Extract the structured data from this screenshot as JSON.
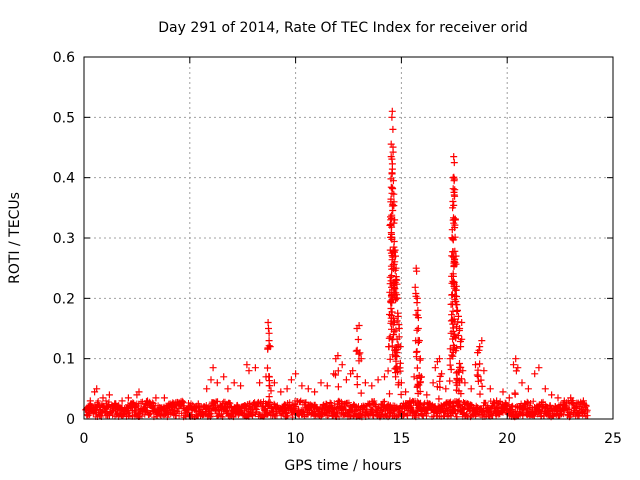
{
  "chart_data": {
    "type": "scatter",
    "title": "Day 291 of 2014, Rate Of TEC Index for receiver orid",
    "xlabel": "GPS time / hours",
    "ylabel": "ROTI / TECUs",
    "xlim": [
      0,
      25
    ],
    "ylim": [
      0,
      0.6
    ],
    "xticks": [
      0,
      5,
      10,
      15,
      20,
      25
    ],
    "yticks": [
      0,
      0.1,
      0.2,
      0.3,
      0.4,
      0.5,
      0.6
    ],
    "xtick_labels": [
      "0",
      "5",
      "10",
      "15",
      "20",
      "25"
    ],
    "ytick_labels": [
      "0",
      "0.1",
      "0.2",
      "0.3",
      "0.4",
      "0.5",
      "0.6"
    ],
    "grid": true,
    "marker": "+",
    "color": "#ff0000",
    "series": [
      {
        "name": "ROTI",
        "points": [
          [
            0.1,
            0.015
          ],
          [
            0.3,
            0.03
          ],
          [
            0.5,
            0.045
          ],
          [
            0.6,
            0.05
          ],
          [
            0.9,
            0.035
          ],
          [
            1.2,
            0.04
          ],
          [
            1.5,
            0.025
          ],
          [
            1.8,
            0.03
          ],
          [
            2.1,
            0.035
          ],
          [
            2.5,
            0.04
          ],
          [
            2.6,
            0.045
          ],
          [
            3.0,
            0.03
          ],
          [
            3.4,
            0.035
          ],
          [
            3.8,
            0.035
          ],
          [
            4.2,
            0.02
          ],
          [
            4.6,
            0.025
          ],
          [
            5.0,
            0.02
          ],
          [
            5.4,
            0.025
          ],
          [
            5.8,
            0.05
          ],
          [
            6.0,
            0.065
          ],
          [
            6.1,
            0.085
          ],
          [
            6.3,
            0.06
          ],
          [
            6.6,
            0.07
          ],
          [
            6.8,
            0.05
          ],
          [
            7.1,
            0.06
          ],
          [
            7.4,
            0.055
          ],
          [
            7.7,
            0.09
          ],
          [
            7.8,
            0.08
          ],
          [
            8.1,
            0.085
          ],
          [
            8.3,
            0.06
          ],
          [
            8.6,
            0.07
          ],
          [
            8.7,
            0.16
          ],
          [
            8.72,
            0.15
          ],
          [
            8.75,
            0.13
          ],
          [
            8.8,
            0.12
          ],
          [
            9.0,
            0.06
          ],
          [
            9.3,
            0.045
          ],
          [
            9.6,
            0.05
          ],
          [
            9.8,
            0.065
          ],
          [
            10.0,
            0.075
          ],
          [
            10.3,
            0.055
          ],
          [
            10.6,
            0.05
          ],
          [
            10.9,
            0.045
          ],
          [
            11.2,
            0.06
          ],
          [
            11.5,
            0.055
          ],
          [
            11.8,
            0.075
          ],
          [
            11.9,
            0.1
          ],
          [
            12.0,
            0.105
          ],
          [
            12.2,
            0.09
          ],
          [
            12.4,
            0.065
          ],
          [
            12.6,
            0.075
          ],
          [
            12.7,
            0.08
          ],
          [
            12.9,
            0.15
          ],
          [
            13.0,
            0.155
          ],
          [
            13.1,
            0.1
          ],
          [
            13.3,
            0.06
          ],
          [
            13.6,
            0.055
          ],
          [
            13.9,
            0.065
          ],
          [
            14.2,
            0.07
          ],
          [
            14.4,
            0.12
          ],
          [
            14.45,
            0.21
          ],
          [
            14.5,
            0.36
          ],
          [
            14.52,
            0.435
          ],
          [
            14.55,
            0.5
          ],
          [
            14.57,
            0.51
          ],
          [
            14.6,
            0.48
          ],
          [
            14.62,
            0.395
          ],
          [
            14.65,
            0.36
          ],
          [
            14.68,
            0.33
          ],
          [
            14.7,
            0.28
          ],
          [
            14.72,
            0.27
          ],
          [
            14.75,
            0.25
          ],
          [
            14.78,
            0.23
          ],
          [
            14.8,
            0.2
          ],
          [
            14.85,
            0.17
          ],
          [
            14.9,
            0.15
          ],
          [
            14.95,
            0.12
          ],
          [
            15.0,
            0.06
          ],
          [
            15.2,
            0.045
          ],
          [
            15.4,
            0.03
          ],
          [
            15.6,
            0.07
          ],
          [
            15.7,
            0.25
          ],
          [
            15.72,
            0.245
          ],
          [
            15.75,
            0.2
          ],
          [
            15.78,
            0.18
          ],
          [
            15.8,
            0.15
          ],
          [
            15.85,
            0.13
          ],
          [
            15.9,
            0.1
          ],
          [
            15.95,
            0.07
          ],
          [
            16.2,
            0.04
          ],
          [
            16.5,
            0.06
          ],
          [
            16.6,
            0.085
          ],
          [
            16.7,
            0.095
          ],
          [
            16.8,
            0.1
          ],
          [
            16.9,
            0.075
          ],
          [
            17.1,
            0.05
          ],
          [
            17.3,
            0.1
          ],
          [
            17.35,
            0.19
          ],
          [
            17.4,
            0.3
          ],
          [
            17.42,
            0.35
          ],
          [
            17.45,
            0.4
          ],
          [
            17.47,
            0.435
          ],
          [
            17.5,
            0.425
          ],
          [
            17.52,
            0.38
          ],
          [
            17.55,
            0.33
          ],
          [
            17.58,
            0.27
          ],
          [
            17.6,
            0.22
          ],
          [
            17.65,
            0.18
          ],
          [
            17.7,
            0.17
          ],
          [
            17.75,
            0.15
          ],
          [
            17.8,
            0.12
          ],
          [
            17.85,
            0.16
          ],
          [
            17.9,
            0.08
          ],
          [
            18.0,
            0.06
          ],
          [
            18.3,
            0.05
          ],
          [
            18.5,
            0.09
          ],
          [
            18.6,
            0.11
          ],
          [
            18.7,
            0.12
          ],
          [
            18.8,
            0.13
          ],
          [
            18.9,
            0.08
          ],
          [
            19.2,
            0.05
          ],
          [
            19.5,
            0.03
          ],
          [
            19.8,
            0.045
          ],
          [
            20.1,
            0.035
          ],
          [
            20.3,
            0.09
          ],
          [
            20.4,
            0.1
          ],
          [
            20.5,
            0.085
          ],
          [
            20.7,
            0.06
          ],
          [
            21.0,
            0.05
          ],
          [
            21.3,
            0.075
          ],
          [
            21.5,
            0.085
          ],
          [
            21.8,
            0.05
          ],
          [
            22.1,
            0.04
          ],
          [
            22.4,
            0.035
          ],
          [
            22.7,
            0.03
          ],
          [
            23.0,
            0.035
          ],
          [
            23.3,
            0.025
          ],
          [
            23.6,
            0.03
          ]
        ]
      }
    ]
  }
}
